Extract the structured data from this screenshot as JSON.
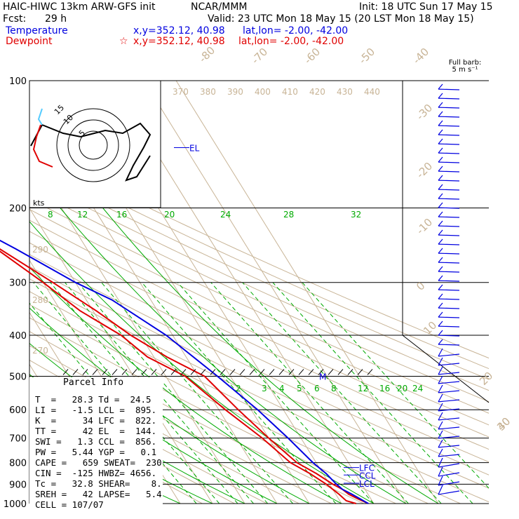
{
  "header": {
    "model": "HAIC-HIWC 13km ARW-GFS init",
    "org": "NCAR/MMM",
    "init": "Init: 18 UTC Sun 17 May 15",
    "fcst_label": "Fcst:",
    "fcst_value": "29 h",
    "valid": "Valid: 23 UTC Mon 18 May 15 (20 LST Mon 18 May 15)",
    "temp_label": "Temperature",
    "temp_xy": "x,y=352.12, 40.98",
    "temp_latlon": "lat,lon= -2.00, -42.00",
    "dew_label": "Dewpoint",
    "dew_marker": "☆",
    "dew_xy": "x,y=352.12, 40.98",
    "dew_latlon": "lat,lon= -2.00, -42.00"
  },
  "barb_legend": {
    "line1": "Full barb:",
    "line2": "5 m s⁻¹"
  },
  "colors": {
    "temperature": "#e00000",
    "parcel": "#0000e0",
    "mixing": "#00aa00",
    "isotherm": "#c8b496",
    "hodograph": "#000000"
  },
  "chart_data": {
    "type": "line",
    "pressure_levels": [
      100,
      200,
      300,
      400,
      500,
      600,
      700,
      800,
      900,
      1000
    ],
    "isotherm_labels": [
      "-80",
      "-70",
      "-60",
      "-50",
      "-40",
      "-30",
      "-20",
      "-10",
      "0",
      "10",
      "20",
      "30",
      "40"
    ],
    "theta_labels": [
      "370",
      "380",
      "390",
      "400",
      "410",
      "420",
      "430",
      "440"
    ],
    "theta_left_labels": [
      "290",
      "280",
      "270"
    ],
    "mixing_upper_labels": [
      "8",
      "12",
      "16",
      "20",
      "24",
      "28",
      "32"
    ],
    "mixing_lower_labels": [
      "2",
      "3",
      "4",
      "5",
      "6",
      "8",
      "12",
      "16",
      "20",
      "24"
    ],
    "series": [
      {
        "key": "temperature",
        "points": [
          [
            28.3,
            1000
          ],
          [
            26,
            975
          ],
          [
            24,
            950
          ],
          [
            23,
            925
          ],
          [
            21,
            900
          ],
          [
            18,
            850
          ],
          [
            14,
            800
          ],
          [
            10,
            700
          ],
          [
            6,
            600
          ],
          [
            2,
            500
          ],
          [
            -6,
            450
          ],
          [
            -13,
            400
          ],
          [
            -19,
            350
          ],
          [
            -27,
            300
          ],
          [
            -37,
            250
          ],
          [
            -50,
            200
          ],
          [
            -58,
            175
          ],
          [
            -70,
            150
          ],
          [
            -76,
            125
          ],
          [
            -80,
            100
          ]
        ]
      },
      {
        "key": "dewpoint",
        "points": [
          [
            24.5,
            1000
          ],
          [
            22,
            985
          ],
          [
            21,
            950
          ],
          [
            20,
            925
          ],
          [
            19,
            900
          ],
          [
            16,
            850
          ],
          [
            12,
            800
          ],
          [
            8,
            700
          ],
          [
            2,
            600
          ],
          [
            -4,
            500
          ],
          [
            -12,
            450
          ],
          [
            -16,
            400
          ],
          [
            -24,
            350
          ],
          [
            -30,
            300
          ],
          [
            -38,
            250
          ],
          [
            -52,
            200
          ],
          [
            -60,
            175
          ],
          [
            -72,
            150
          ],
          [
            -78,
            125
          ],
          [
            -82,
            100
          ]
        ]
      },
      {
        "key": "parcel",
        "points": [
          [
            28.3,
            1000
          ],
          [
            25,
            950
          ],
          [
            23,
            925
          ],
          [
            22,
            895
          ],
          [
            21,
            850
          ],
          [
            19,
            800
          ],
          [
            16,
            700
          ],
          [
            12,
            600
          ],
          [
            6,
            500
          ],
          [
            -2,
            400
          ],
          [
            -12,
            330
          ],
          [
            -20,
            300
          ],
          [
            -32,
            250
          ],
          [
            -48,
            200
          ],
          [
            -62,
            160
          ],
          [
            -74,
            144
          ],
          [
            -82,
            125
          ],
          [
            -86,
            100
          ]
        ]
      }
    ],
    "levels_marked": [
      {
        "label": "EL",
        "p": 144
      },
      {
        "label": "LFC",
        "p": 822
      },
      {
        "label": "CCL",
        "p": 856
      },
      {
        "label": "LCL",
        "p": 895
      },
      {
        "label": "M",
        "p": 500
      }
    ],
    "hodograph": {
      "ring_labels": [
        "15",
        "10",
        "5"
      ],
      "axis_label": "kts"
    }
  },
  "parcel_info": {
    "title": "Parcel Info",
    "rows": [
      "T  =   28.3 Td =  24.5",
      "LI =   -1.5 LCL =  895.",
      "K  =     34 LFC =  822.",
      "TT =     42 EL  =  144.",
      "SWI =   1.3 CCL =  856.",
      "PW =   5.44 YGP =   0.1",
      "CAPE =   659 SWEAT=  230",
      "CIN =  -125 HWBZ= 4656.",
      "Tc =   32.8 SHEAR=    8.",
      "SREH =   42 LAPSE=   5.4",
      "CELL = 107/07"
    ]
  }
}
